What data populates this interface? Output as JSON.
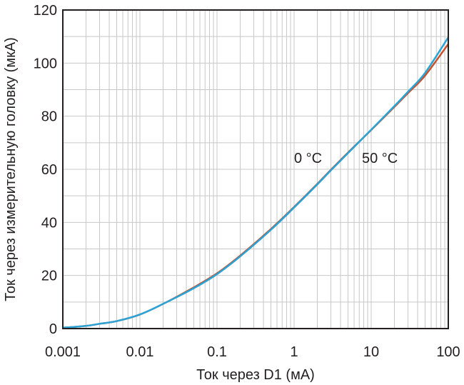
{
  "chart_data": {
    "type": "line",
    "x_scale": "log",
    "xlim": [
      0.001,
      100
    ],
    "ylim": [
      0,
      120
    ],
    "xlabel": "Ток через D1 (мА)",
    "ylabel": "Ток через измерительную головку (мкА)",
    "x_ticks": [
      "0.001",
      "0.01",
      "0.1",
      "1",
      "10",
      "100"
    ],
    "y_ticks": [
      "0",
      "20",
      "40",
      "60",
      "80",
      "100",
      "120"
    ],
    "grid": true,
    "annotations": [
      "0 °C",
      "50 °C"
    ],
    "colors": {
      "series_0C": "#c8502a",
      "series_50C": "#2aa3d6",
      "grid": "#c8c8c8",
      "axis": "#231f20"
    },
    "series": [
      {
        "x": [
          0.001,
          0.002,
          0.003,
          0.005,
          0.01,
          0.02,
          0.05,
          0.1,
          0.2,
          0.5,
          1,
          2,
          3,
          5,
          10,
          20,
          30,
          50,
          100
        ],
        "values": [
          0.3,
          1.0,
          1.8,
          2.8,
          5.3,
          9.3,
          15.5,
          20.8,
          27.5,
          37.5,
          45.8,
          54.5,
          59.8,
          66.3,
          74.8,
          83.5,
          88.7,
          95.3,
          107.2
        ]
      },
      {
        "x": [
          0.001,
          0.002,
          0.003,
          0.005,
          0.01,
          0.02,
          0.05,
          0.1,
          0.2,
          0.5,
          1,
          2,
          3,
          5,
          10,
          20,
          30,
          50,
          100
        ],
        "values": [
          0.3,
          1.0,
          1.8,
          2.8,
          5.3,
          9.3,
          15.2,
          20.5,
          27.2,
          37.2,
          45.6,
          54.3,
          59.6,
          66.1,
          74.9,
          83.8,
          89.2,
          96.3,
          109.7
        ]
      }
    ]
  }
}
